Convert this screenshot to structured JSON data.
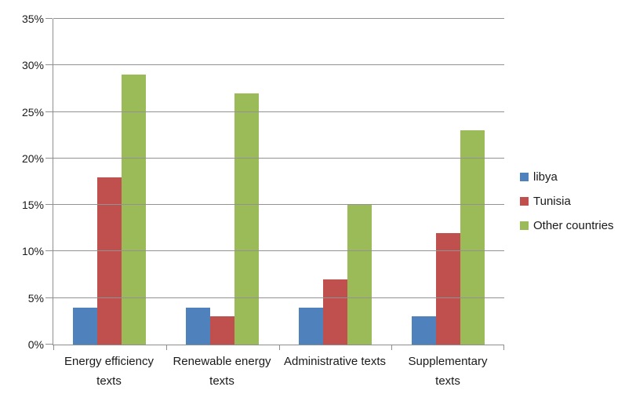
{
  "chart_data": {
    "type": "bar",
    "title": "",
    "categories": [
      "Energy efficiency texts",
      "Renewable energy texts",
      "Administrative texts",
      "Supplementary texts"
    ],
    "series": [
      {
        "name": "libya",
        "color": "#4F81BD",
        "values": [
          4,
          4,
          4,
          3
        ]
      },
      {
        "name": "Tunisia",
        "color": "#C0504D",
        "values": [
          18,
          3,
          7,
          12
        ]
      },
      {
        "name": "Other countries",
        "color": "#9BBB59",
        "values": [
          29,
          27,
          15,
          23
        ]
      }
    ],
    "y_axis": {
      "ticks": [
        "0%",
        "5%",
        "10%",
        "15%",
        "20%",
        "25%",
        "30%",
        "35%"
      ],
      "min": 0,
      "max": 35,
      "step": 5,
      "unit": "%"
    },
    "grid": true,
    "legend_position": "right"
  },
  "colors": {
    "gridline": "#929292",
    "axis": "#8e8e8e",
    "text": "#1a1a1a",
    "background": "#ffffff"
  }
}
